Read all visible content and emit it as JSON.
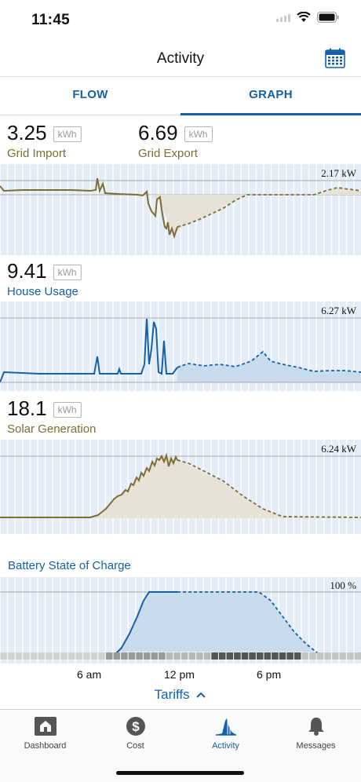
{
  "status_bar": {
    "time": "11:45"
  },
  "header": {
    "title": "Activity",
    "calendar_icon": "calendar-icon"
  },
  "tabs": [
    {
      "label": "FLOW",
      "active": false
    },
    {
      "label": "GRAPH",
      "active": true
    }
  ],
  "grid": {
    "import": {
      "value": "3.25",
      "unit": "kWh",
      "label": "Grid Import"
    },
    "export": {
      "value": "6.69",
      "unit": "kWh",
      "label": "Grid Export"
    },
    "peak": "2.17 kW"
  },
  "house": {
    "value": "9.41",
    "unit": "kWh",
    "label": "House Usage",
    "peak": "6.27 kW"
  },
  "solar": {
    "value": "18.1",
    "unit": "kWh",
    "label": "Solar Generation",
    "peak": "6.24 kW"
  },
  "battery": {
    "title": "Battery State of Charge",
    "peak": "100 %"
  },
  "time_axis": {
    "labels": [
      "6 am",
      "12 pm",
      "6 pm"
    ]
  },
  "tariffs_label": "Tariffs",
  "tabbar": [
    {
      "label": "Dashboard",
      "icon": "house-icon",
      "active": false
    },
    {
      "label": "Cost",
      "icon": "dollar-icon",
      "active": false
    },
    {
      "label": "Activity",
      "icon": "activity-icon",
      "active": true
    },
    {
      "label": "Messages",
      "icon": "bell-icon",
      "active": false
    }
  ],
  "colors": {
    "accent": "#1560a8",
    "olive": "#7d6d34",
    "fill_olive": "#e6e2d7",
    "fill_blue": "#c9dcee"
  },
  "chart_data": [
    {
      "type": "line",
      "title": "Grid Import / Export",
      "ylabel": "kW",
      "series": [
        {
          "x": [
            0,
            1,
            2,
            3,
            4,
            5,
            6,
            6.5,
            7,
            7.5,
            8,
            8.5,
            9,
            9.5,
            10,
            10.5,
            11,
            12,
            13,
            14,
            15,
            16,
            17,
            18,
            19,
            20,
            21,
            22,
            23,
            24
          ],
          "values": [
            0.2,
            0.1,
            0.1,
            0.1,
            0.1,
            0.1,
            0.1,
            0.9,
            0.1,
            0.0,
            -0.1,
            -0.3,
            -1.0,
            -2.0,
            -1.7,
            -1.5,
            -1.2,
            -0.8,
            -0.4,
            -0.1,
            0.0,
            0.0,
            0.0,
            0.0,
            0.0,
            0.0,
            0.0,
            0.3,
            0.4,
            0.3
          ]
        }
      ],
      "peak_label": "2.17 kW"
    },
    {
      "type": "area",
      "title": "House Usage",
      "ylabel": "kW",
      "series": [
        {
          "x": [
            0,
            2,
            4,
            6,
            6.5,
            7,
            8,
            9,
            9.5,
            10,
            10.3,
            10.6,
            11,
            11.5,
            12,
            13,
            14,
            15,
            16,
            17,
            17.5,
            18,
            19,
            20,
            21,
            22,
            23,
            24
          ],
          "values": [
            0.6,
            0.5,
            0.5,
            0.5,
            1.9,
            0.5,
            0.6,
            0.5,
            0.6,
            5.9,
            1.2,
            5.8,
            1.2,
            0.5,
            1.5,
            1.4,
            1.5,
            1.4,
            1.6,
            1.8,
            2.5,
            1.7,
            1.6,
            1.3,
            1.0,
            1.1,
            1.0,
            0.9
          ]
        }
      ],
      "peak_label": "6.27 kW"
    },
    {
      "type": "area",
      "title": "Solar Generation",
      "ylabel": "kW",
      "series": [
        {
          "x": [
            0,
            5,
            6,
            7,
            8,
            9,
            10,
            10.5,
            11,
            11.5,
            12,
            13,
            14,
            15,
            16,
            17,
            18,
            19,
            20,
            24
          ],
          "values": [
            0,
            0,
            0.1,
            0.9,
            2.6,
            4.0,
            5.6,
            6.1,
            5.8,
            6.2,
            5.9,
            5.2,
            4.3,
            3.0,
            1.6,
            0.5,
            0.1,
            0,
            0,
            0
          ]
        }
      ],
      "peak_label": "6.24 kW"
    },
    {
      "type": "area",
      "title": "Battery State of Charge",
      "ylabel": "%",
      "series": [
        {
          "x": [
            0,
            7.5,
            8.5,
            9.5,
            10,
            11,
            12,
            14,
            16,
            17,
            18,
            19,
            20,
            21,
            24
          ],
          "values": [
            0,
            0,
            40,
            90,
            100,
            100,
            100,
            100,
            100,
            100,
            100,
            75,
            45,
            0,
            0
          ]
        }
      ],
      "peak_label": "100 %"
    }
  ]
}
